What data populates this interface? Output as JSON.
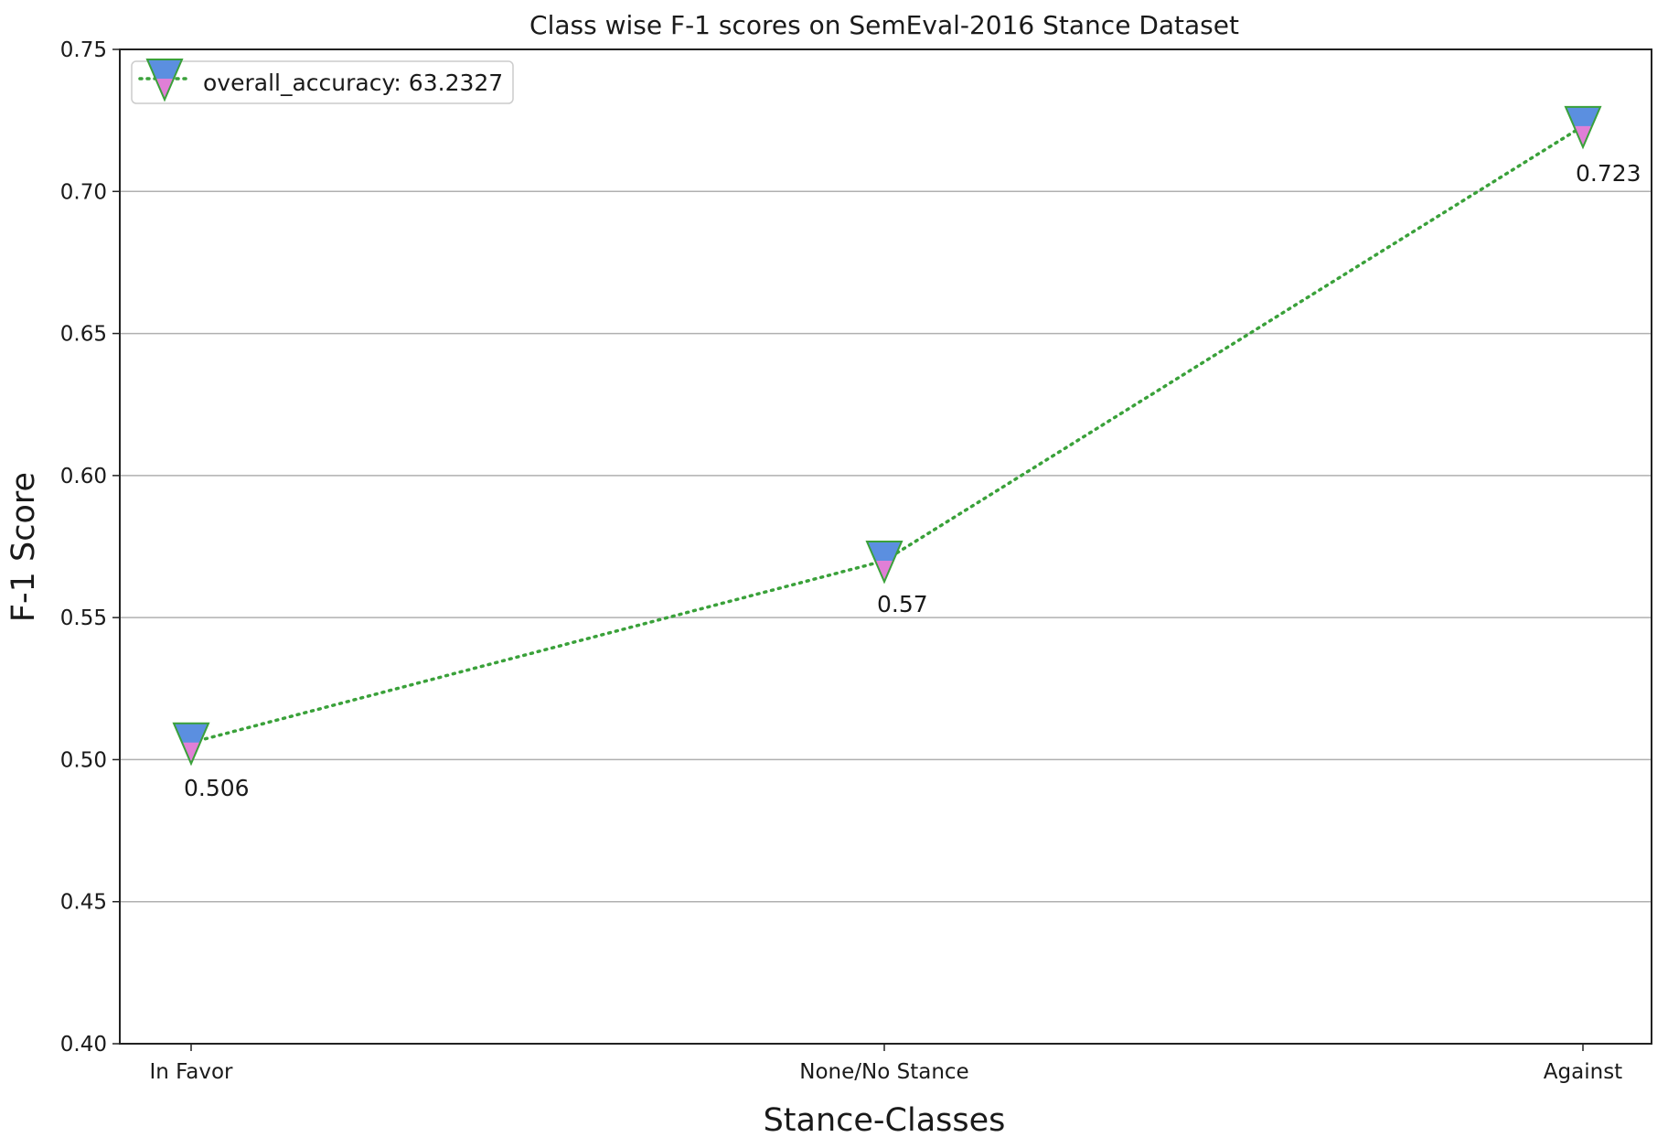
{
  "chart_data": {
    "type": "line",
    "title": "Class wise F-1 scores on SemEval-2016 Stance Dataset",
    "xlabel": "Stance-Classes",
    "ylabel": "F-1 Score",
    "categories": [
      "In Favor",
      "None/No Stance",
      "Against"
    ],
    "series": [
      {
        "name": "overall_accuracy: 63.2327",
        "values": [
          0.506,
          0.57,
          0.723
        ],
        "data_labels": [
          "0.506",
          "0.57",
          "0.723"
        ],
        "line_color": "#3aa13a",
        "line_style": "dotted",
        "marker": "triangle-down",
        "marker_fill_top": "#5b8fe0",
        "marker_fill_bottom": "#e07fd6",
        "marker_edge": "#3aa13a"
      }
    ],
    "ylim": [
      0.4,
      0.75
    ],
    "yticks": [
      "0.40",
      "0.45",
      "0.50",
      "0.55",
      "0.60",
      "0.65",
      "0.70",
      "0.75"
    ],
    "grid": "horizontal",
    "legend_position": "top-left"
  }
}
